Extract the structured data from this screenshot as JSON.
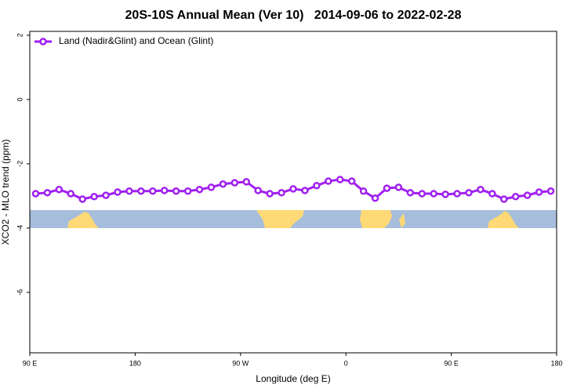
{
  "chart_data": {
    "type": "line",
    "title": "20S-10S Annual Mean (Ver 10)   2014-09-06 to 2022-02-28",
    "xlabel": "Longitude (deg E)",
    "ylabel": "XCO2 - MLO trend (ppm)",
    "x": [
      95,
      105,
      115,
      125,
      135,
      145,
      155,
      165,
      175,
      185,
      195,
      205,
      215,
      225,
      235,
      245,
      255,
      265,
      275,
      285,
      295,
      305,
      315,
      325,
      335,
      345,
      355,
      365,
      375,
      385,
      395,
      405,
      415,
      425,
      435,
      445,
      455,
      465,
      475,
      485,
      495,
      505,
      515,
      525,
      535
    ],
    "series": [
      {
        "name": "Land (Nadir&Glint) and Ocean (Glint)",
        "color": "#a020f0",
        "values": [
          -2.93,
          -2.9,
          -2.8,
          -2.93,
          -3.1,
          -3.02,
          -2.98,
          -2.88,
          -2.85,
          -2.85,
          -2.85,
          -2.83,
          -2.85,
          -2.85,
          -2.8,
          -2.73,
          -2.63,
          -2.59,
          -2.56,
          -2.83,
          -2.93,
          -2.9,
          -2.78,
          -2.83,
          -2.68,
          -2.54,
          -2.49,
          -2.54,
          -2.85,
          -3.07,
          -2.76,
          -2.73,
          -2.9,
          -2.93,
          -2.93,
          -2.95,
          -2.93,
          -2.9,
          -2.8,
          -2.93,
          -3.1,
          -3.02,
          -2.98,
          -2.88,
          -2.85
        ]
      }
    ],
    "xlim": [
      90,
      540
    ],
    "xticks": [
      {
        "value": 90,
        "label": "90 E"
      },
      180,
      {
        "value": 270,
        "label": "90 W"
      },
      {
        "value": 360,
        "label": "0"
      },
      {
        "value": 450,
        "label": "90 E"
      },
      {
        "value": 540,
        "label": "180"
      }
    ],
    "ylim": [
      -7.88,
      2.12
    ],
    "yticks": [
      2,
      0,
      -2,
      -4,
      -6
    ],
    "legend": "top-left"
  }
}
